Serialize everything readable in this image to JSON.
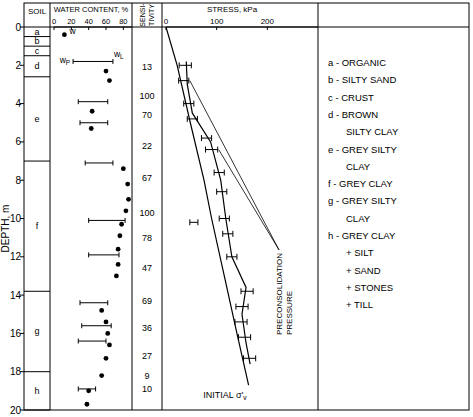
{
  "depth_axis": {
    "label": "DEPTH, m",
    "ylim": [
      0,
      20
    ],
    "yticks": [
      0,
      2,
      4,
      6,
      8,
      10,
      12,
      14,
      16,
      18,
      20
    ]
  },
  "soil": {
    "title": "SOIL",
    "layers": [
      {
        "key": "a",
        "top": 0,
        "bottom": 0.5
      },
      {
        "key": "b",
        "top": 0.5,
        "bottom": 1.0
      },
      {
        "key": "c",
        "top": 1.0,
        "bottom": 1.5
      },
      {
        "key": "d",
        "top": 1.5,
        "bottom": 2.6
      },
      {
        "key": "e",
        "top": 2.6,
        "bottom": 7.0
      },
      {
        "key": "f",
        "top": 7.0,
        "bottom": 13.8
      },
      {
        "key": "g",
        "top": 13.8,
        "bottom": 18.0
      },
      {
        "key": "h",
        "top": 18.0,
        "bottom": 20
      }
    ],
    "legend": [
      {
        "lines": [
          "a - ORGANIC"
        ]
      },
      {
        "lines": [
          "b - SILTY SAND"
        ]
      },
      {
        "lines": [
          "c - CRUST"
        ]
      },
      {
        "lines": [
          "d - BROWN",
          "SILTY CLAY"
        ]
      },
      {
        "lines": [
          "e - GREY SILTY",
          "CLAY"
        ]
      },
      {
        "lines": [
          "f - GREY CLAY"
        ]
      },
      {
        "lines": [
          "g - GREY SILTY",
          "CLAY"
        ]
      },
      {
        "lines": [
          "h - GREY CLAY",
          "+ SILT",
          "+ SAND",
          "+ STONES",
          "+ TILL"
        ]
      }
    ]
  },
  "chart_data": [
    {
      "type": "scatter",
      "title": "WATER CONTENT, %",
      "xlim": [
        0,
        90
      ],
      "xticks": [
        0,
        20,
        40,
        60,
        80
      ],
      "series": [
        {
          "name": "w",
          "type": "scatter",
          "marker": "circle",
          "color": "#000000",
          "depth": [
            0.4,
            2.3,
            2.8,
            4.4,
            5.3,
            7.4,
            8.2,
            9.0,
            9.6,
            10.3,
            10.9,
            11.6,
            12.4,
            13.0,
            14.8,
            15.4,
            16.0,
            16.6,
            17.3,
            18.2,
            19.0,
            19.7
          ],
          "values": [
            12,
            60,
            64,
            44,
            43,
            80,
            85,
            86,
            83,
            78,
            76,
            74,
            74,
            72,
            55,
            60,
            62,
            64,
            60,
            55,
            40,
            38
          ]
        },
        {
          "type": "range",
          "color": "#000000",
          "low_label": {
            "base": "w",
            "sub": "P"
          },
          "high_label": {
            "base": "w",
            "sub": "L"
          },
          "depth": [
            1.8,
            3.9,
            5.0,
            7.1,
            10.1,
            11.9,
            14.4,
            15.6,
            16.4,
            18.9
          ],
          "low": [
            22,
            28,
            30,
            36,
            40,
            40,
            30,
            32,
            28,
            28
          ],
          "high": [
            68,
            62,
            62,
            68,
            82,
            75,
            62,
            66,
            60,
            48
          ]
        }
      ]
    },
    {
      "type": "text",
      "title": [
        "SENSI-",
        "TIVITY"
      ],
      "depth": [
        2.1,
        3.6,
        4.6,
        6.2,
        7.9,
        9.7,
        11.0,
        12.6,
        14.3,
        15.7,
        17.2,
        18.2,
        18.9
      ],
      "values": [
        13,
        100,
        70,
        22,
        67,
        100,
        78,
        47,
        69,
        36,
        27,
        9,
        10
      ]
    },
    {
      "type": "line",
      "title": "STRESS, kPa",
      "xlim": [
        0,
        300
      ],
      "xticks": [
        0,
        100,
        200
      ],
      "series": [
        {
          "type": "line",
          "color": "#000000",
          "label": {
            "text": "INITIAL σ'",
            "sub": "v"
          },
          "depth": [
            0,
            2,
            5,
            8,
            10,
            13,
            16,
            18.7
          ],
          "values": [
            0,
            22,
            48,
            75,
            90,
            115,
            140,
            163
          ]
        },
        {
          "type": "errorbar",
          "color": "#000000",
          "label_lines": [
            "PRECONSOLIDATION",
            "PRESSURE"
          ],
          "depth": [
            2.0,
            2.8,
            4.0,
            4.8,
            5.8,
            6.4,
            7.6,
            8.6,
            10.0,
            10.2,
            10.8,
            12.0,
            13.8,
            14.6,
            15.4,
            16.2,
            17.3
          ],
          "values": [
            38,
            35,
            45,
            52,
            80,
            90,
            105,
            110,
            115,
            55,
            122,
            130,
            160,
            150,
            148,
            155,
            165
          ],
          "errors": [
            12,
            10,
            10,
            10,
            10,
            12,
            10,
            10,
            10,
            8,
            10,
            10,
            12,
            12,
            12,
            12,
            12
          ]
        },
        {
          "type": "line",
          "color": "#000000",
          "depth": [
            1.8,
            3.0,
            4.5,
            6.0,
            8.0,
            10.0,
            12.0,
            13.6,
            15.0,
            16.5,
            17.6
          ],
          "values": [
            40,
            42,
            52,
            88,
            108,
            118,
            130,
            158,
            150,
            158,
            166
          ]
        }
      ]
    }
  ]
}
